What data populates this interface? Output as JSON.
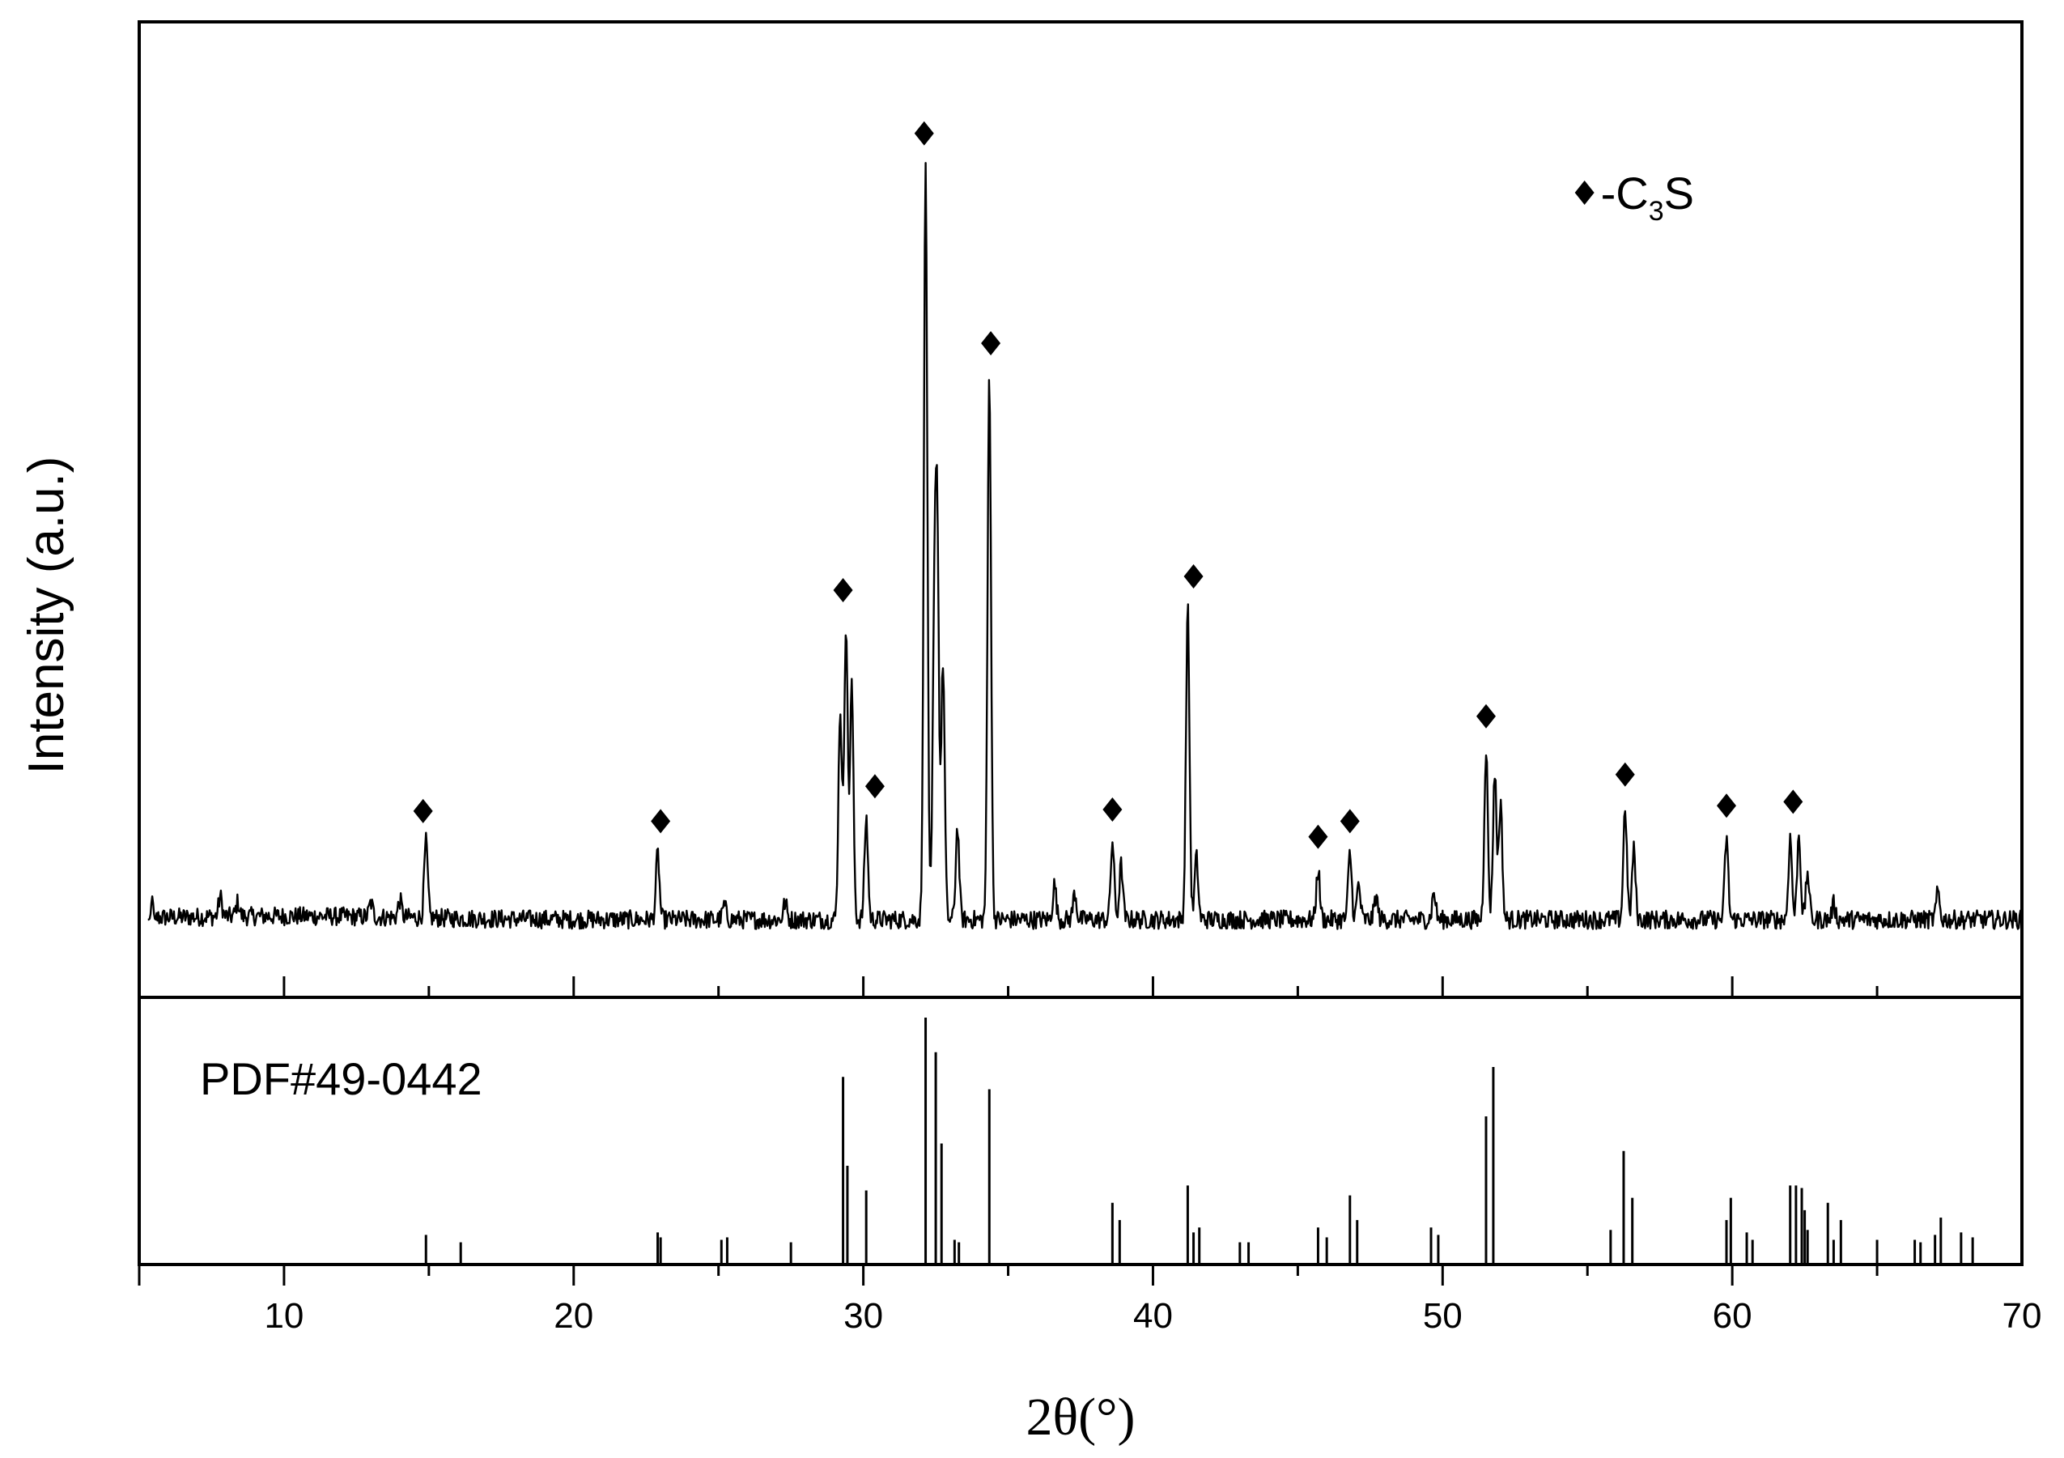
{
  "chart_data": {
    "type": "line",
    "xlabel": "2θ(°)",
    "ylabel": "Intensity (a.u.)",
    "xlim": [
      5,
      70
    ],
    "x_ticks": [
      10,
      20,
      30,
      40,
      50,
      60,
      70
    ],
    "x_minor_ticks": [
      15,
      25,
      35,
      45,
      55,
      65
    ],
    "grid": false,
    "legend": {
      "symbol": "filled-diamond",
      "prefix": "-C",
      "subscript": "3",
      "suffix": "S",
      "placement": "top-right"
    },
    "series": [
      {
        "panel": "upper",
        "style": "continuous-diffractogram",
        "background_level": 3,
        "baseline_noise": 1.2,
        "peaks": [
          {
            "x": 7.8,
            "y": 2.5
          },
          {
            "x": 8.4,
            "y": 1.8
          },
          {
            "x": 13.0,
            "y": 1.8
          },
          {
            "x": 14.0,
            "y": 2.2
          },
          {
            "x": 14.9,
            "y": 9.8
          },
          {
            "x": 22.9,
            "y": 8.5
          },
          {
            "x": 25.2,
            "y": 1.8
          },
          {
            "x": 27.3,
            "y": 2.2
          },
          {
            "x": 29.2,
            "y": 27
          },
          {
            "x": 29.4,
            "y": 38
          },
          {
            "x": 29.6,
            "y": 30
          },
          {
            "x": 30.1,
            "y": 13
          },
          {
            "x": 32.15,
            "y": 97
          },
          {
            "x": 32.45,
            "y": 34
          },
          {
            "x": 32.55,
            "y": 48
          },
          {
            "x": 32.75,
            "y": 33
          },
          {
            "x": 33.25,
            "y": 12
          },
          {
            "x": 34.35,
            "y": 70
          },
          {
            "x": 36.6,
            "y": 4.5
          },
          {
            "x": 37.3,
            "y": 3.5
          },
          {
            "x": 38.6,
            "y": 10
          },
          {
            "x": 38.9,
            "y": 7
          },
          {
            "x": 41.2,
            "y": 40
          },
          {
            "x": 41.5,
            "y": 8
          },
          {
            "x": 45.7,
            "y": 6.5
          },
          {
            "x": 46.8,
            "y": 8.5
          },
          {
            "x": 47.1,
            "y": 4.5
          },
          {
            "x": 47.7,
            "y": 3
          },
          {
            "x": 49.7,
            "y": 3.5
          },
          {
            "x": 51.5,
            "y": 22
          },
          {
            "x": 51.8,
            "y": 19
          },
          {
            "x": 52.0,
            "y": 15
          },
          {
            "x": 56.3,
            "y": 14.5
          },
          {
            "x": 56.6,
            "y": 9
          },
          {
            "x": 59.8,
            "y": 10.5
          },
          {
            "x": 62.0,
            "y": 10.5
          },
          {
            "x": 62.3,
            "y": 11
          },
          {
            "x": 62.6,
            "y": 6
          },
          {
            "x": 63.5,
            "y": 2
          },
          {
            "x": 67.1,
            "y": 3.5
          }
        ],
        "marked_peaks": [
          14.8,
          23.0,
          29.3,
          30.4,
          32.1,
          34.4,
          38.6,
          41.4,
          45.7,
          46.8,
          51.5,
          56.3,
          59.8,
          62.1
        ]
      },
      {
        "panel": "lower",
        "name": "PDF#49-0442",
        "style": "stick-pattern",
        "sticks": [
          {
            "x": 14.9,
            "y": 12
          },
          {
            "x": 16.1,
            "y": 9
          },
          {
            "x": 22.9,
            "y": 13
          },
          {
            "x": 23.0,
            "y": 11
          },
          {
            "x": 25.1,
            "y": 10
          },
          {
            "x": 25.3,
            "y": 11
          },
          {
            "x": 27.5,
            "y": 9
          },
          {
            "x": 29.3,
            "y": 76
          },
          {
            "x": 29.45,
            "y": 40
          },
          {
            "x": 30.1,
            "y": 30
          },
          {
            "x": 32.15,
            "y": 100
          },
          {
            "x": 32.5,
            "y": 86
          },
          {
            "x": 32.7,
            "y": 49
          },
          {
            "x": 33.15,
            "y": 10
          },
          {
            "x": 33.3,
            "y": 9
          },
          {
            "x": 34.35,
            "y": 71
          },
          {
            "x": 38.6,
            "y": 25
          },
          {
            "x": 38.85,
            "y": 18
          },
          {
            "x": 41.2,
            "y": 32
          },
          {
            "x": 41.4,
            "y": 13
          },
          {
            "x": 41.6,
            "y": 15
          },
          {
            "x": 43.0,
            "y": 9
          },
          {
            "x": 43.3,
            "y": 9
          },
          {
            "x": 45.7,
            "y": 15
          },
          {
            "x": 46.0,
            "y": 11
          },
          {
            "x": 46.8,
            "y": 28
          },
          {
            "x": 47.05,
            "y": 18
          },
          {
            "x": 49.6,
            "y": 15
          },
          {
            "x": 49.85,
            "y": 12
          },
          {
            "x": 51.5,
            "y": 60
          },
          {
            "x": 51.75,
            "y": 80
          },
          {
            "x": 55.8,
            "y": 14
          },
          {
            "x": 56.25,
            "y": 46
          },
          {
            "x": 56.55,
            "y": 27
          },
          {
            "x": 59.8,
            "y": 18
          },
          {
            "x": 59.95,
            "y": 27
          },
          {
            "x": 60.5,
            "y": 13
          },
          {
            "x": 60.7,
            "y": 10
          },
          {
            "x": 62.0,
            "y": 32
          },
          {
            "x": 62.2,
            "y": 32
          },
          {
            "x": 62.4,
            "y": 31
          },
          {
            "x": 62.5,
            "y": 22
          },
          {
            "x": 62.6,
            "y": 14
          },
          {
            "x": 63.3,
            "y": 25
          },
          {
            "x": 63.5,
            "y": 10
          },
          {
            "x": 63.75,
            "y": 18
          },
          {
            "x": 65.0,
            "y": 10
          },
          {
            "x": 66.3,
            "y": 10
          },
          {
            "x": 66.5,
            "y": 9
          },
          {
            "x": 67.0,
            "y": 12
          },
          {
            "x": 67.2,
            "y": 19
          },
          {
            "x": 67.9,
            "y": 13
          },
          {
            "x": 68.3,
            "y": 11
          }
        ]
      }
    ]
  }
}
